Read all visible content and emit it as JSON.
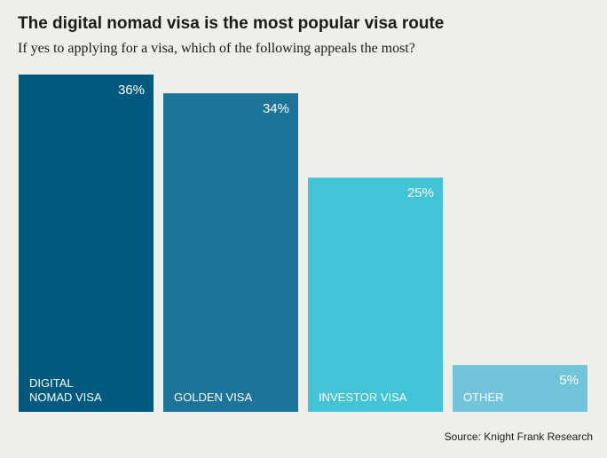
{
  "chart_data": {
    "type": "bar",
    "title": "The digital nomad visa is the most popular visa route",
    "subtitle": "If yes to applying for a visa, which of the following appeals the most?",
    "categories": [
      "DIGITAL NOMAD VISA",
      "GOLDEN VISA",
      "INVESTOR VISA",
      "OTHER"
    ],
    "category_lines": [
      [
        "DIGITAL",
        "NOMAD VISA"
      ],
      [
        "GOLDEN VISA"
      ],
      [
        "INVESTOR VISA"
      ],
      [
        "OTHER"
      ]
    ],
    "values": [
      36,
      34,
      25,
      5
    ],
    "value_labels": [
      "36%",
      "34%",
      "25%",
      "5%"
    ],
    "colors": [
      "#005a80",
      "#1d7499",
      "#43c3d6",
      "#71c4d9"
    ],
    "ylim": [
      0,
      36
    ],
    "grid": false,
    "legend": "none"
  },
  "source": "Source: Knight Frank Research"
}
